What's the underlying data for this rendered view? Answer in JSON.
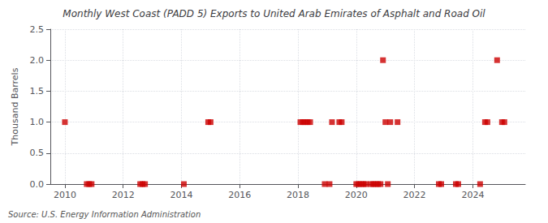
{
  "chart_data": {
    "type": "scatter",
    "title": "Monthly West Coast (PADD 5) Exports to United Arab Emirates of Asphalt and Road Oil",
    "ylabel": "Thousand Barrels",
    "annotation": "Source: U.S. Energy Information Administration",
    "x": [
      2010.0,
      2010.75,
      2010.833,
      2010.917,
      2012.583,
      2012.667,
      2012.75,
      2014.083,
      2014.917,
      2015.0,
      2018.083,
      2018.167,
      2018.25,
      2018.333,
      2018.417,
      2018.917,
      2019.083,
      2019.167,
      2019.417,
      2019.5,
      2020.0,
      2020.083,
      2020.167,
      2020.25,
      2020.333,
      2020.5,
      2020.583,
      2020.667,
      2020.75,
      2020.833,
      2020.917,
      2021.0,
      2021.083,
      2021.167,
      2021.417,
      2022.833,
      2022.917,
      2023.417,
      2023.5,
      2024.25,
      2024.417,
      2024.5,
      2024.833,
      2025.0,
      2025.083
    ],
    "values": [
      1.0,
      0.0,
      0.0,
      0.0,
      0.0,
      0.0,
      0.0,
      0.0,
      1.0,
      1.0,
      1.0,
      1.0,
      1.0,
      1.0,
      1.0,
      0.0,
      0.0,
      1.0,
      1.0,
      1.0,
      0.0,
      0.0,
      0.0,
      0.0,
      0.0,
      0.0,
      0.0,
      0.0,
      0.0,
      0.0,
      2.0,
      1.0,
      0.0,
      1.0,
      1.0,
      0.0,
      0.0,
      0.0,
      0.0,
      0.0,
      1.0,
      1.0,
      2.0,
      1.0,
      1.0
    ],
    "color": "#cc0000",
    "marker": "square",
    "xlim": [
      2009.5,
      2025.8
    ],
    "xticks": [
      2010,
      2012,
      2014,
      2016,
      2018,
      2020,
      2022,
      2024
    ],
    "ylim": [
      0.0,
      2.5
    ],
    "yticks": [
      {
        "value": 0.0,
        "label": "0.0"
      },
      0.5,
      {
        "value": 1.0,
        "label": "1.0"
      },
      1.5,
      {
        "value": 2.0,
        "label": "2.0"
      },
      2.5
    ],
    "grid": true
  }
}
